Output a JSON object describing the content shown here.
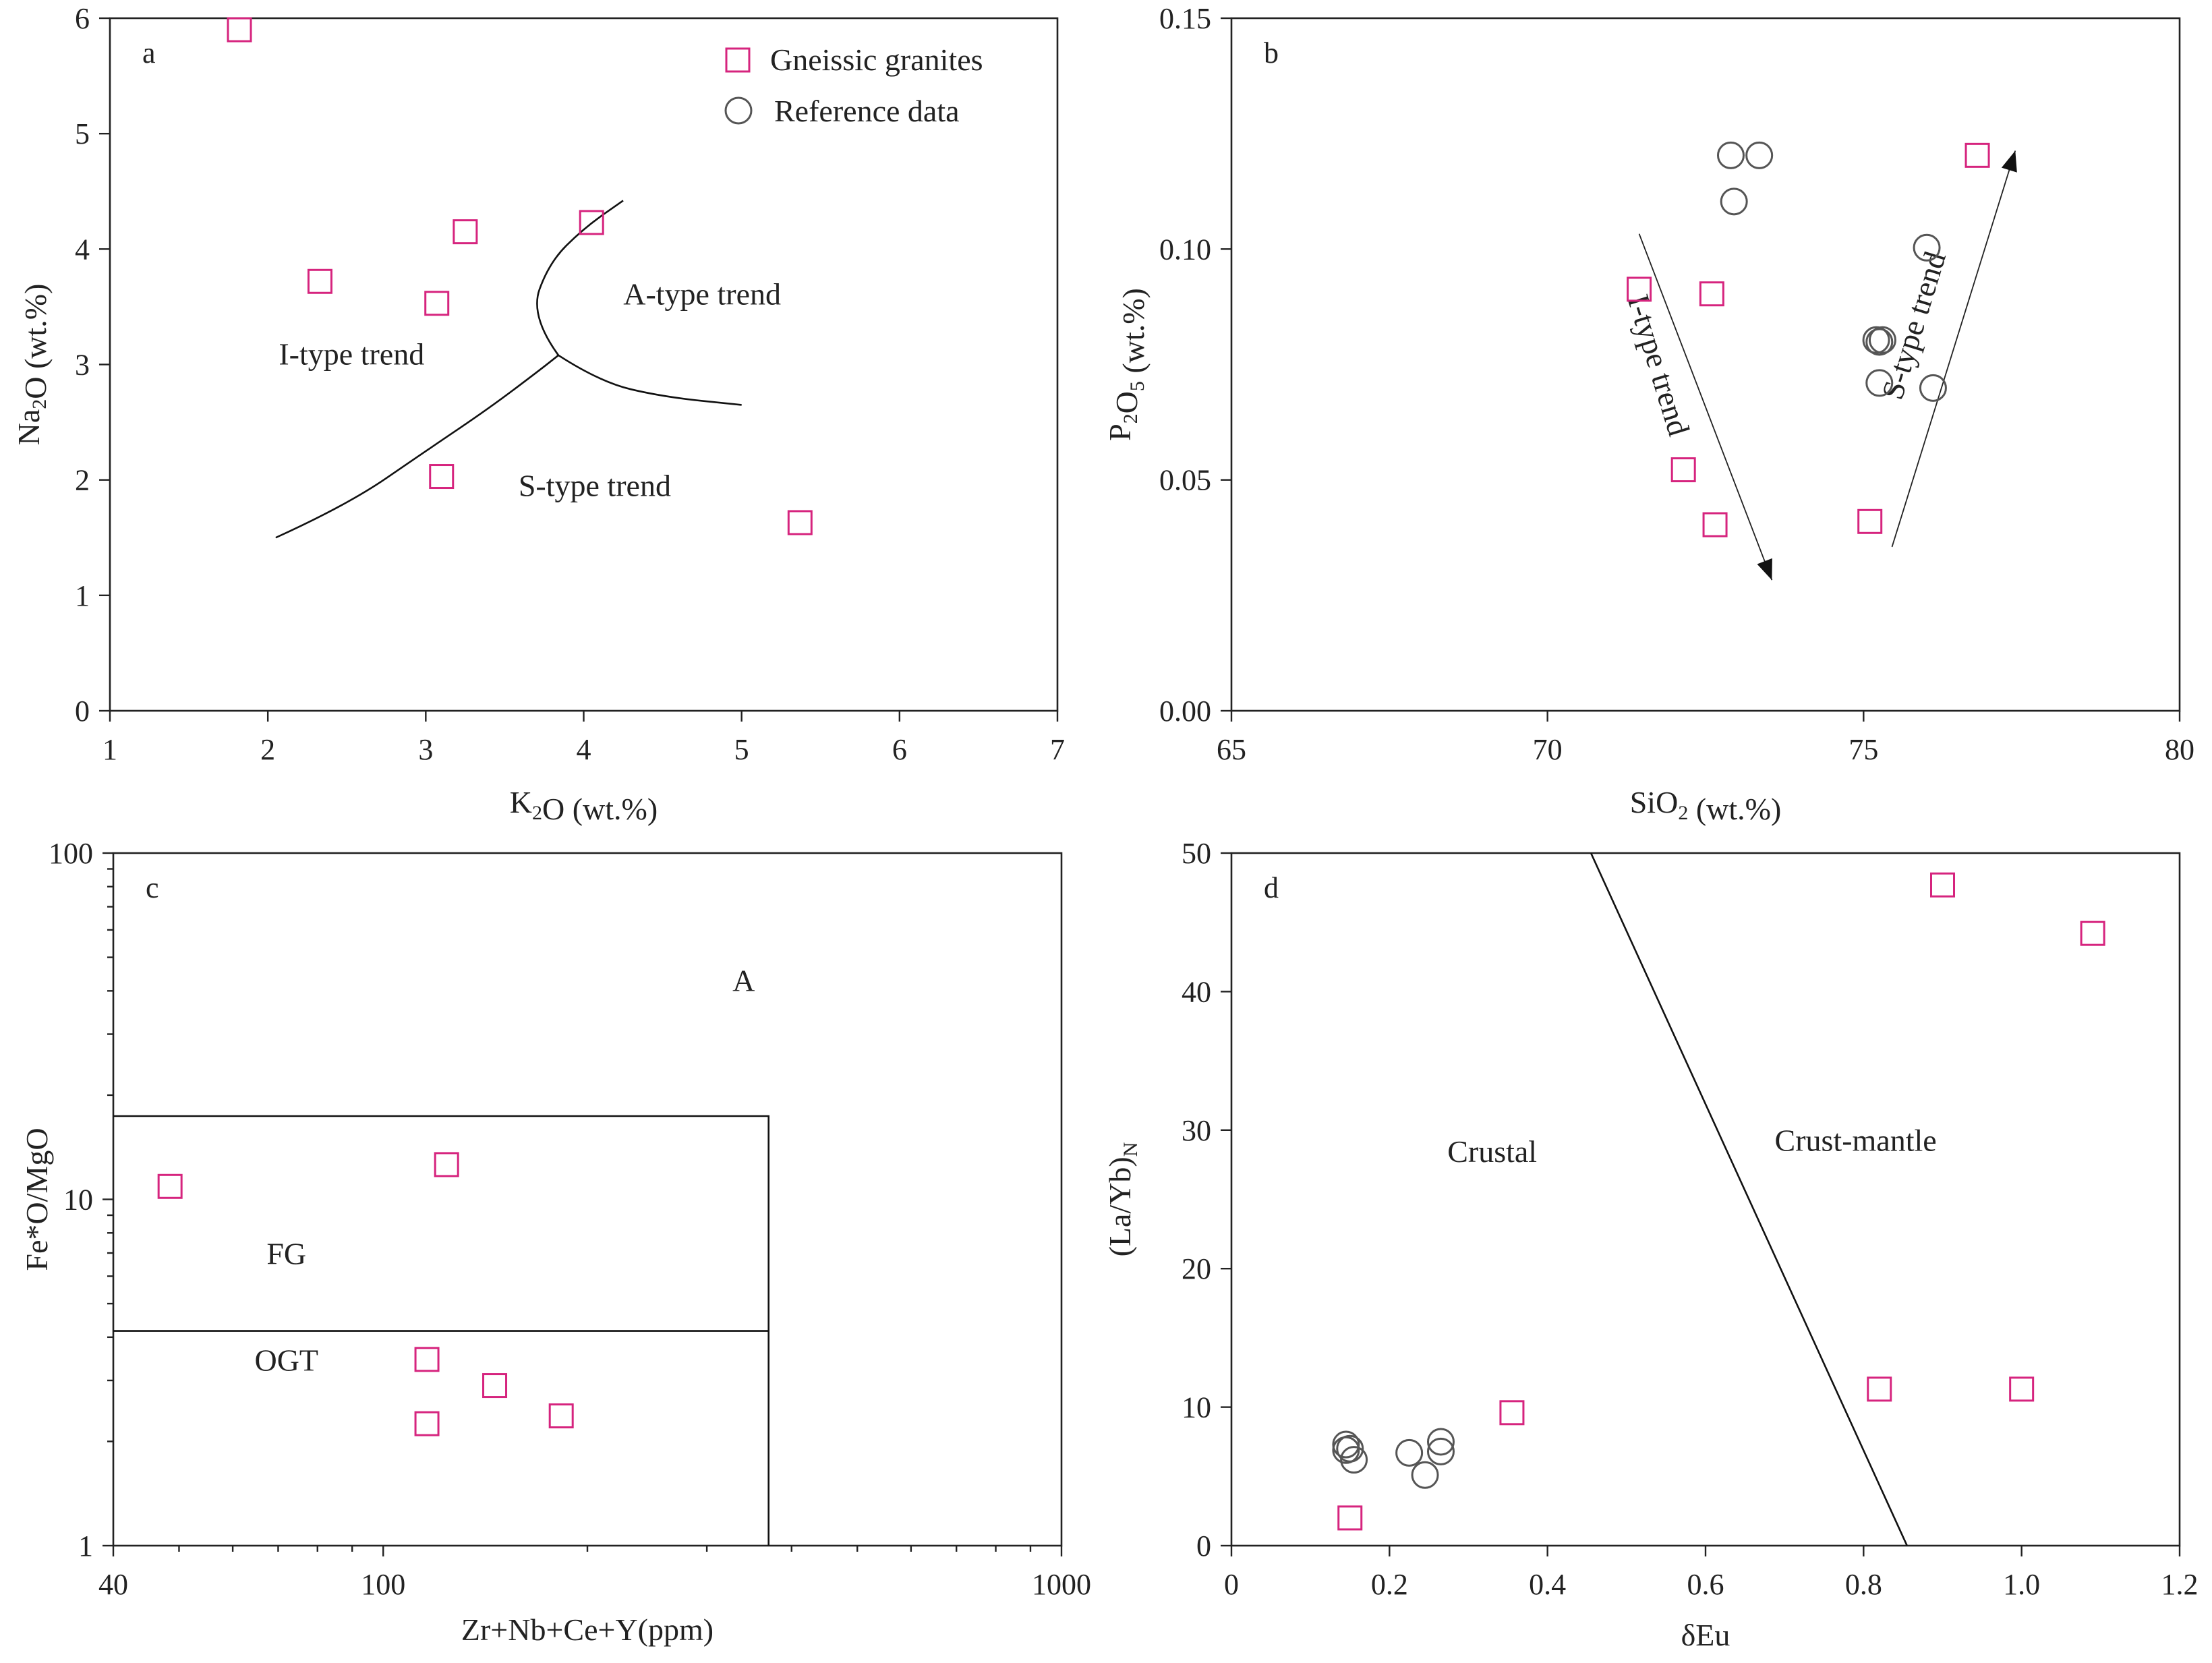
{
  "legend": {
    "gneissic": "Gneissic granites",
    "reference": "Reference data"
  },
  "colors": {
    "gneissic": "#d6247e",
    "reference": "#555555",
    "axis": "#222222"
  },
  "chart_data": [
    {
      "id": "a",
      "type": "scatter",
      "panel_letter": "a",
      "xlabel": {
        "main": "K",
        "sub": "2",
        "rest": "O (wt.%)"
      },
      "ylabel": {
        "main": "Na",
        "sub": "2",
        "rest": "O (wt.%)"
      },
      "xlim": [
        1,
        7
      ],
      "ylim": [
        0,
        6
      ],
      "xticks": [
        "1",
        "2",
        "3",
        "4",
        "5",
        "6",
        "7"
      ],
      "yticks": [
        "0",
        "1",
        "2",
        "3",
        "4",
        "5",
        "6"
      ],
      "series": [
        {
          "name": "Gneissic granites",
          "x": [
            1.82,
            2.33,
            3.07,
            3.25,
            4.05,
            3.1,
            5.37
          ],
          "y": [
            5.9,
            3.72,
            3.53,
            4.15,
            4.23,
            2.03,
            1.63
          ]
        }
      ],
      "curves": [
        [
          [
            2.05,
            1.5
          ],
          [
            2.5,
            1.78
          ],
          [
            3.0,
            2.25
          ],
          [
            3.4,
            2.62
          ],
          [
            3.72,
            2.95
          ],
          [
            3.84,
            3.08
          ]
        ],
        [
          [
            3.84,
            3.08
          ],
          [
            3.66,
            3.42
          ],
          [
            3.78,
            3.88
          ],
          [
            4.0,
            4.18
          ],
          [
            4.25,
            4.42
          ]
        ],
        [
          [
            3.84,
            3.08
          ],
          [
            4.1,
            2.85
          ],
          [
            4.5,
            2.72
          ],
          [
            5.0,
            2.65
          ]
        ]
      ],
      "labels": [
        {
          "text": "I-type trend",
          "x": 2.53,
          "y": 3.0
        },
        {
          "text": "A-type trend",
          "x": 4.75,
          "y": 3.52
        },
        {
          "text": "S-type trend",
          "x": 4.07,
          "y": 1.86
        }
      ]
    },
    {
      "id": "b",
      "type": "scatter",
      "panel_letter": "b",
      "xlabel": {
        "main": "SiO",
        "sub": "2",
        "rest": " (wt.%)"
      },
      "ylabel": {
        "main": "P",
        "sub": "2",
        "mid": "O",
        "sub2": "5",
        "rest": " (wt.%)"
      },
      "xlim": [
        65,
        80
      ],
      "ylim": [
        0,
        0.15
      ],
      "xticks": [
        "65",
        "70",
        "75",
        "80"
      ],
      "yticks": [
        "0.00",
        "0.05",
        "0.10",
        "0.15"
      ],
      "series": [
        {
          "name": "Gneissic granites",
          "x": [
            71.45,
            72.6,
            72.15,
            72.65,
            75.1,
            76.8
          ],
          "y": [
            0.0913,
            0.0903,
            0.0522,
            0.0403,
            0.041,
            0.1203
          ]
        },
        {
          "name": "Reference data",
          "x": [
            72.9,
            73.35,
            72.95,
            76.0,
            75.2,
            75.3,
            75.25,
            75.25,
            76.1
          ],
          "y": [
            0.1203,
            0.1203,
            0.1103,
            0.1003,
            0.0803,
            0.0803,
            0.0799,
            0.071,
            0.0699
          ]
        }
      ],
      "arrows": [
        {
          "from": [
            71.45,
            0.1033
          ],
          "to": [
            73.55,
            0.0283
          ]
        },
        {
          "from": [
            75.45,
            0.0355
          ],
          "to": [
            77.4,
            0.1213
          ]
        }
      ],
      "labels": [
        {
          "text": "I-type trend",
          "x": 71.6,
          "y": 0.0742,
          "rotate": 73
        },
        {
          "text": "S-type trend",
          "x": 75.95,
          "y": 0.0828,
          "rotate": -73
        }
      ]
    },
    {
      "id": "c",
      "type": "scatter",
      "panel_letter": "c",
      "xlabel": {
        "main": "Zr+Nb+Ce+Y(ppm)"
      },
      "ylabel": {
        "main": "Fe*O/MgO"
      },
      "xscale": "log",
      "yscale": "log",
      "xlim": [
        40,
        1000
      ],
      "ylim": [
        1,
        100
      ],
      "xticks": [
        {
          "v": 40,
          "label": "40"
        },
        {
          "v": 100,
          "label": "100"
        },
        {
          "v": 1000,
          "label": "1000"
        }
      ],
      "yticks": [
        {
          "v": 1,
          "label": "1"
        },
        {
          "v": 10,
          "label": "10"
        },
        {
          "v": 100,
          "label": "100"
        }
      ],
      "series": [
        {
          "name": "Gneissic granites",
          "x": [
            48.5,
            124,
            116,
            146,
            116,
            183
          ],
          "y": [
            10.9,
            12.6,
            3.45,
            2.9,
            2.25,
            2.37
          ]
        }
      ],
      "field_lines": [
        [
          [
            40,
            17.4
          ],
          [
            370,
            17.4
          ],
          [
            370,
            1
          ]
        ],
        [
          [
            40,
            4.17
          ],
          [
            370,
            4.17
          ]
        ]
      ],
      "labels": [
        {
          "text": "A",
          "x": 340,
          "y": 40
        },
        {
          "text": "FG",
          "x": 72,
          "y": 6.5
        },
        {
          "text": "OGT",
          "x": 72,
          "y": 3.2
        }
      ]
    },
    {
      "id": "d",
      "type": "scatter",
      "panel_letter": "d",
      "xlabel": {
        "main": "δEu"
      },
      "ylabel": {
        "main": "(La/Yb)",
        "sub": "N"
      },
      "xlim": [
        0,
        1.2
      ],
      "ylim": [
        0,
        50
      ],
      "xticks": [
        "0",
        "0.2",
        "0.4",
        "0.6",
        "0.8",
        "1.0",
        "1.2"
      ],
      "yticks": [
        "0",
        "10",
        "20",
        "30",
        "40",
        "50"
      ],
      "series": [
        {
          "name": "Gneissic granites",
          "x": [
            0.15,
            0.355,
            0.82,
            0.9,
            1.0,
            1.09
          ],
          "y": [
            2.0,
            9.6,
            11.3,
            47.7,
            11.3,
            44.2
          ]
        },
        {
          "name": "Reference data",
          "x": [
            0.145,
            0.15,
            0.145,
            0.155,
            0.225,
            0.245,
            0.265,
            0.265
          ],
          "y": [
            7.3,
            7.0,
            6.9,
            6.2,
            6.7,
            5.1,
            6.8,
            7.5
          ]
        }
      ],
      "field_lines": [
        [
          [
            0.455,
            50
          ],
          [
            0.855,
            0
          ]
        ]
      ],
      "labels": [
        {
          "text": "Crustal",
          "x": 0.33,
          "y": 27.7
        },
        {
          "text": "Crust-mantle",
          "x": 0.79,
          "y": 28.5
        }
      ]
    }
  ]
}
